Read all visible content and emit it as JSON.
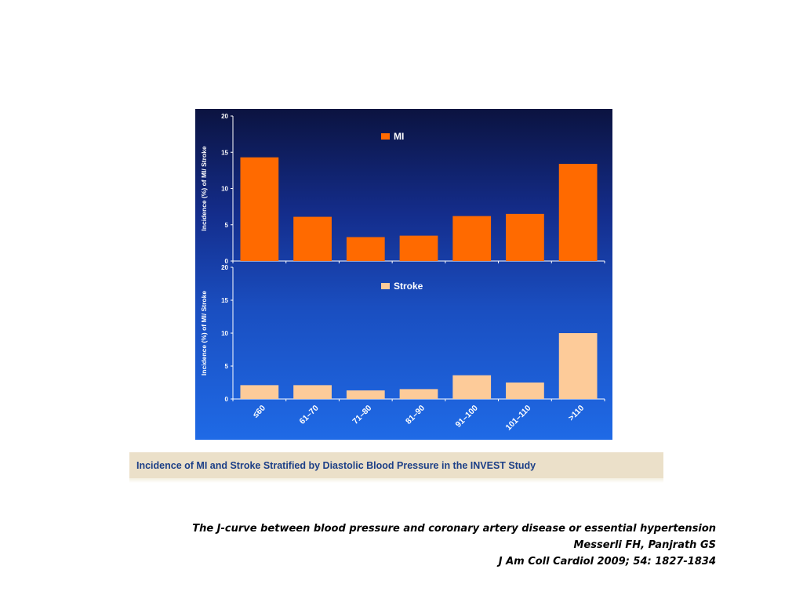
{
  "chart_data": [
    {
      "type": "bar",
      "title": "",
      "ylabel": "Incidence (%) of MI/ Stroke",
      "xlabel": "",
      "ylim": [
        0,
        20
      ],
      "yticks": [
        "0",
        "5",
        "10",
        "15",
        "20"
      ],
      "categories": [
        "≤60",
        "61–70",
        "71–80",
        "81–90",
        "91–100",
        "101–110",
        ">110"
      ],
      "series": [
        {
          "name": "MI",
          "color": "#ff6a00",
          "values": [
            14.3,
            6.1,
            3.3,
            3.5,
            6.2,
            6.5,
            13.4
          ]
        }
      ],
      "legend": "top-center",
      "grid": false
    },
    {
      "type": "bar",
      "title": "",
      "ylabel": "Incidence (%) of MI/ Stroke",
      "xlabel": "",
      "ylim": [
        0,
        20
      ],
      "yticks": [
        "0",
        "5",
        "10",
        "15",
        "20"
      ],
      "categories": [
        "≤60",
        "61–70",
        "71–80",
        "81–90",
        "91–100",
        "101–110",
        ">110"
      ],
      "series": [
        {
          "name": "Stroke",
          "color": "#fdcb99",
          "values": [
            2.1,
            2.1,
            1.3,
            1.5,
            3.6,
            2.5,
            10.0
          ]
        }
      ],
      "legend": "top-center",
      "grid": false
    }
  ],
  "caption": "Incidence of MI and Stroke Stratified by Diastolic Blood Pressure in the INVEST Study",
  "reference": {
    "line1": "The J-curve between blood pressure and coronary artery disease  or essential hypertension",
    "line2": "Messerli FH, Panjrath GS",
    "line3": "J Am Coll Cardiol 2009; 54: 1827-1834"
  }
}
